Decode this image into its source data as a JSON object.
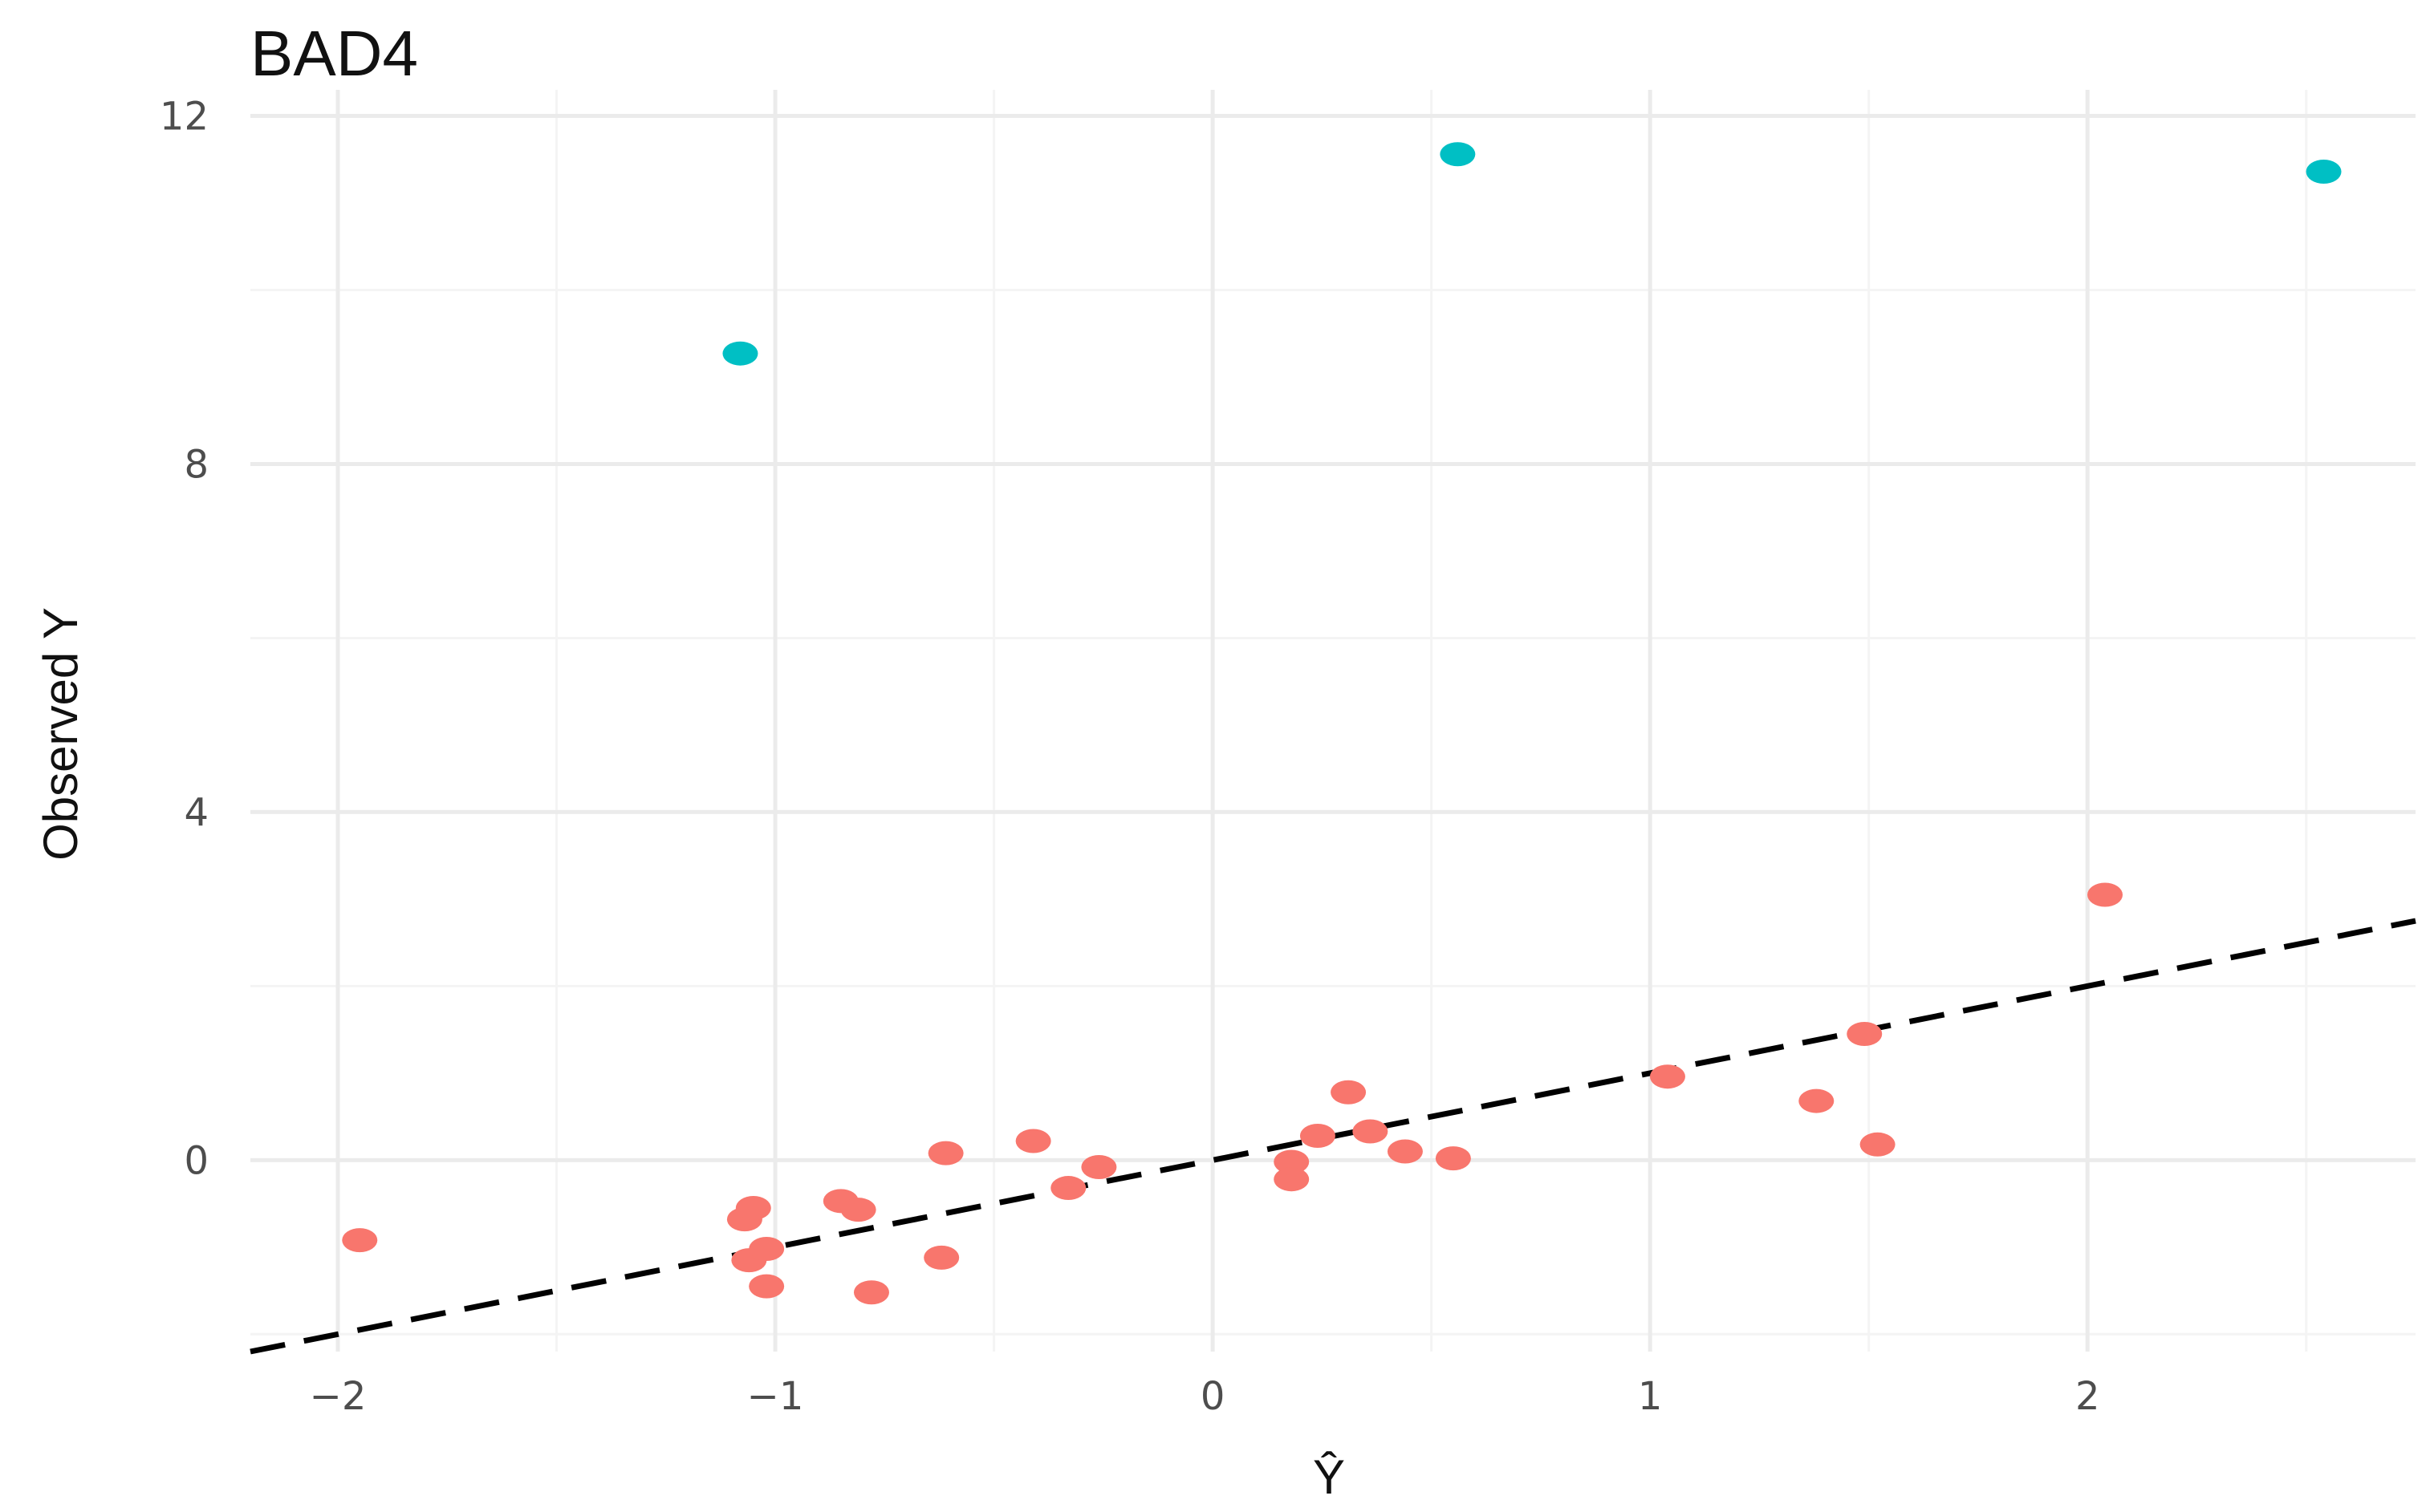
{
  "chart_data": {
    "type": "scatter",
    "title": "BAD4",
    "xlabel": "Ŷ",
    "ylabel": "Observed Y",
    "xlim": [
      -2.2,
      2.75
    ],
    "ylim": [
      -2.2,
      12.3
    ],
    "x_ticks": [
      -2,
      -1,
      0,
      1,
      2
    ],
    "x_tick_labels": [
      "−2",
      "−1",
      "0",
      "1",
      "2"
    ],
    "y_ticks": [
      0,
      4,
      8,
      12
    ],
    "y_tick_labels": [
      "0",
      "4",
      "8",
      "12"
    ],
    "grid": true,
    "legend": "none",
    "colors": {
      "normal": "#f8766d",
      "outlier": "#00bfc4",
      "reference_line": "#000000"
    },
    "reference_line": {
      "slope": 1,
      "intercept": 0,
      "style": "dashed"
    },
    "series": [
      {
        "color": "#f8766d",
        "points": [
          {
            "x": -1.95,
            "y": -0.92
          },
          {
            "x": -1.07,
            "y": -0.68
          },
          {
            "x": -1.05,
            "y": -0.55
          },
          {
            "x": -1.06,
            "y": -1.15
          },
          {
            "x": -1.02,
            "y": -1.02
          },
          {
            "x": -1.02,
            "y": -1.45
          },
          {
            "x": -0.85,
            "y": -0.47
          },
          {
            "x": -0.81,
            "y": -0.57
          },
          {
            "x": -0.78,
            "y": -1.52
          },
          {
            "x": -0.62,
            "y": -1.12
          },
          {
            "x": -0.61,
            "y": 0.08
          },
          {
            "x": -0.41,
            "y": 0.22
          },
          {
            "x": -0.33,
            "y": -0.32
          },
          {
            "x": -0.26,
            "y": -0.08
          },
          {
            "x": 0.18,
            "y": -0.02
          },
          {
            "x": 0.18,
            "y": -0.22
          },
          {
            "x": 0.24,
            "y": 0.28
          },
          {
            "x": 0.31,
            "y": 0.78
          },
          {
            "x": 0.36,
            "y": 0.33
          },
          {
            "x": 0.44,
            "y": 0.1
          },
          {
            "x": 0.55,
            "y": 0.02
          },
          {
            "x": 1.04,
            "y": 0.96
          },
          {
            "x": 1.38,
            "y": 0.68
          },
          {
            "x": 1.49,
            "y": 1.45
          },
          {
            "x": 1.52,
            "y": 0.18
          },
          {
            "x": 2.04,
            "y": 3.05
          }
        ]
      },
      {
        "color": "#00bfc4",
        "points": [
          {
            "x": -1.08,
            "y": 9.27
          },
          {
            "x": 0.56,
            "y": 11.56
          },
          {
            "x": 2.54,
            "y": 11.36
          }
        ]
      }
    ]
  }
}
